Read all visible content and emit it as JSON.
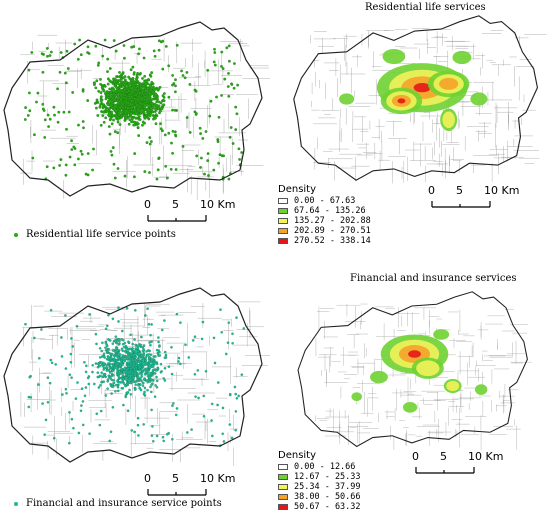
{
  "colors": {
    "boundary": "#222222",
    "residential_points": "#2aa814",
    "financial_points": "#1fb99a",
    "roads": "#9a9a9a"
  },
  "panels": {
    "top_left": {
      "legend_label": "Residential life service points",
      "scale": {
        "labels": [
          "0",
          "5",
          "10 Km"
        ]
      }
    },
    "top_right": {
      "title": "Residential life services",
      "density_header": "Density",
      "density_classes": [
        {
          "label": "0.00 - 67.63",
          "color": "#ffffff"
        },
        {
          "label": "67.64 - 135.26",
          "color": "#6fd232"
        },
        {
          "label": "135.27 - 202.88",
          "color": "#f2f25a"
        },
        {
          "label": "202.89 - 270.51",
          "color": "#f5a22a"
        },
        {
          "label": "270.52 - 338.14",
          "color": "#e4161a"
        }
      ],
      "scale": {
        "labels": [
          "0",
          "5",
          "10 Km"
        ]
      }
    },
    "bottom_left": {
      "legend_label": "Financial and insurance service points",
      "scale": {
        "labels": [
          "0",
          "5",
          "10 Km"
        ]
      }
    },
    "bottom_right": {
      "title": "Financial and insurance services",
      "density_header": "Density",
      "density_classes": [
        {
          "label": "0.00 - 12.66",
          "color": "#ffffff"
        },
        {
          "label": "12.67 - 25.33",
          "color": "#6fd232"
        },
        {
          "label": "25.34 - 37.99",
          "color": "#f2f25a"
        },
        {
          "label": "38.00 - 50.66",
          "color": "#f5a22a"
        },
        {
          "label": "50.67 - 63.32",
          "color": "#e4161a"
        }
      ],
      "scale": {
        "labels": [
          "0",
          "5",
          "10 Km"
        ]
      }
    }
  }
}
